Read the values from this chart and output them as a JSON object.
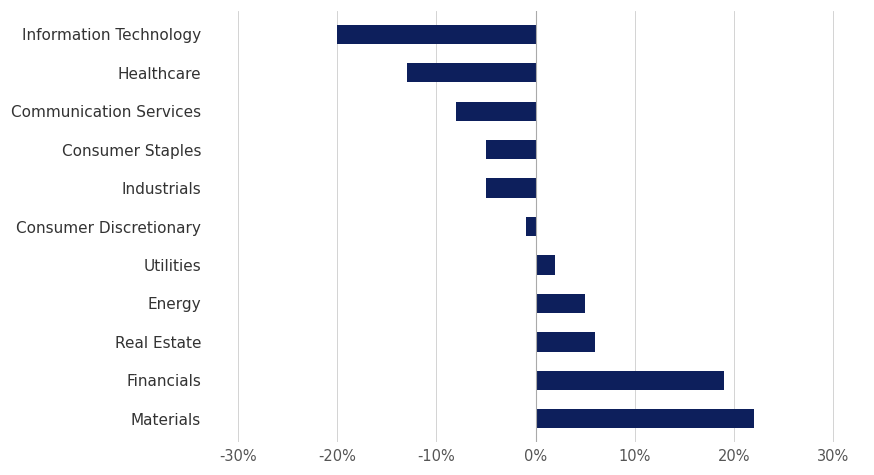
{
  "categories": [
    "Information Technology",
    "Healthcare",
    "Communication Services",
    "Consumer Staples",
    "Industrials",
    "Consumer Discretionary",
    "Utilities",
    "Energy",
    "Real Estate",
    "Financials",
    "Materials"
  ],
  "values": [
    -20.0,
    -13.0,
    -8.0,
    -5.0,
    -5.0,
    -1.0,
    2.0,
    5.0,
    6.0,
    19.0,
    22.0
  ],
  "bar_color": "#0d1f5c",
  "bar_height": 0.5,
  "xlim": [
    -33,
    33
  ],
  "xticks": [
    -30,
    -20,
    -10,
    0,
    10,
    20,
    30
  ],
  "xtick_labels": [
    "-30%",
    "-20%",
    "-10%",
    "0%",
    "10%",
    "20%",
    "30%"
  ],
  "background_color": "#ffffff",
  "label_fontsize": 11,
  "tick_fontsize": 10.5,
  "grid_color": "#cccccc",
  "spine_color": "#999999"
}
